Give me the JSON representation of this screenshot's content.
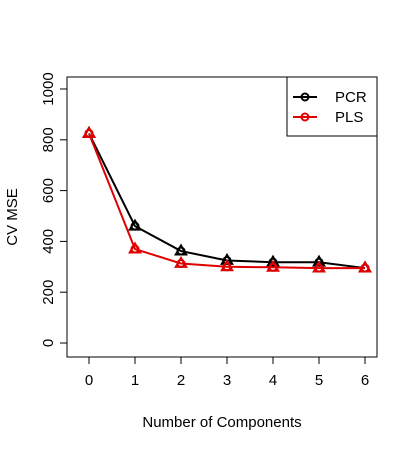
{
  "chart_data": {
    "type": "line",
    "xlabel": "Number of Components",
    "ylabel": "CV MSE",
    "x": [
      0,
      1,
      2,
      3,
      4,
      5,
      6
    ],
    "xlim": [
      0,
      6
    ],
    "ylim": [
      0,
      1000
    ],
    "x_ticks": [
      "0",
      "1",
      "2",
      "3",
      "4",
      "5",
      "6"
    ],
    "y_ticks": [
      "0",
      "200",
      "400",
      "600",
      "800",
      "1000"
    ],
    "legend_position": "top-right",
    "series": [
      {
        "name": "PCR",
        "color": "#000000",
        "marker": "circle",
        "values": [
          825,
          460,
          362,
          325,
          318,
          318,
          295
        ]
      },
      {
        "name": "PLS",
        "color": "#e00000",
        "marker": "circle",
        "values": [
          825,
          370,
          313,
          300,
          298,
          295,
          295
        ]
      }
    ],
    "overlay_marker": "triangle"
  }
}
